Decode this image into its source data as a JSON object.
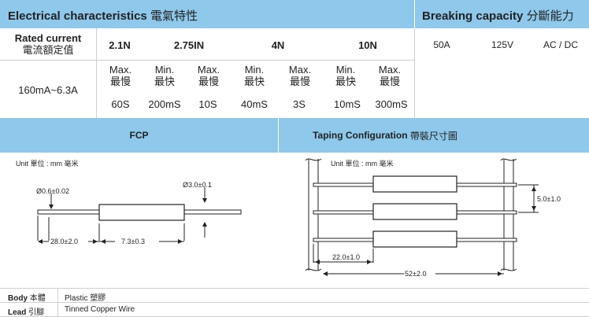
{
  "header": {
    "electrical": "Electrical characteristics",
    "electrical_cjk": "電氣特性",
    "breaking": "Breaking capacity",
    "breaking_cjk": "分斷能力"
  },
  "rated": {
    "label": "Rated current",
    "label_cjk": "電流額定值",
    "columns": [
      "2.1N",
      "2.75IN",
      "4N",
      "10N"
    ],
    "range": "160mA~6.3A"
  },
  "breaking_values": [
    "50A",
    "125V",
    "AC / DC"
  ],
  "limits": [
    {
      "en": "Max.",
      "cjk": "最慢",
      "value": "60S"
    },
    {
      "en": "Min.",
      "cjk": "最快",
      "value": "200mS"
    },
    {
      "en": "Max.",
      "cjk": "最慢",
      "value": "10S"
    },
    {
      "en": "Min.",
      "cjk": "最快",
      "value": "40mS"
    },
    {
      "en": "Max.",
      "cjk": "最慢",
      "value": "3S"
    },
    {
      "en": "Min.",
      "cjk": "最快",
      "value": "10mS"
    },
    {
      "en": "Max.",
      "cjk": "最慢",
      "value": "300mS"
    }
  ],
  "sections": {
    "fcp": "FCP",
    "taping": "Taping Configuration",
    "taping_cjk": "帶裝尺寸圖"
  },
  "fcp_drawing": {
    "unit": "Unit 單位 : mm 毫米",
    "lead_dia": "Ø0.6±0.02",
    "body_dia": "Ø3.0±0.1",
    "lead_len": "28.0±2.0",
    "body_len": "7.3±0.3"
  },
  "taping_drawing": {
    "unit": "Unit 單位 : mm 毫米",
    "pitch": "5.0±1.0",
    "lead_space": "22.0±1.0",
    "tape_width": "52±2.0"
  },
  "specs": [
    {
      "label": "Body",
      "label_cjk": "本體",
      "value": "Plastic 塑膠"
    },
    {
      "label": "Lead",
      "label_cjk": "引腳",
      "value": "Tinned Copper Wire"
    }
  ],
  "colors": {
    "header": "#8ec8ea",
    "line": "#cfcfcf"
  }
}
